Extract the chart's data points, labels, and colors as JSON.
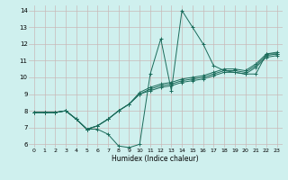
{
  "title": "",
  "xlabel": "Humidex (Indice chaleur)",
  "bg_color": "#cff0ee",
  "grid_color": "#c8b8b8",
  "line_color": "#1a6b5a",
  "xlim": [
    -0.5,
    23.5
  ],
  "ylim": [
    5.8,
    14.3
  ],
  "yticks": [
    6,
    7,
    8,
    9,
    10,
    11,
    12,
    13,
    14
  ],
  "xticks": [
    0,
    1,
    2,
    3,
    4,
    5,
    6,
    7,
    8,
    9,
    10,
    11,
    12,
    13,
    14,
    15,
    16,
    17,
    18,
    19,
    20,
    21,
    22,
    23
  ],
  "series": [
    [
      7.9,
      7.9,
      7.9,
      8.0,
      7.5,
      6.9,
      6.9,
      6.6,
      5.9,
      5.8,
      6.0,
      10.2,
      12.3,
      9.2,
      14.0,
      13.0,
      12.0,
      10.7,
      10.4,
      10.3,
      10.2,
      10.2,
      11.4,
      11.4
    ],
    [
      7.9,
      7.9,
      7.9,
      8.0,
      7.5,
      6.9,
      7.1,
      7.5,
      8.0,
      8.4,
      9.0,
      9.3,
      9.5,
      9.6,
      9.8,
      9.9,
      10.0,
      10.2,
      10.4,
      10.4,
      10.3,
      10.7,
      11.3,
      11.4
    ],
    [
      7.9,
      7.9,
      7.9,
      8.0,
      7.5,
      6.9,
      7.1,
      7.5,
      8.0,
      8.4,
      9.1,
      9.4,
      9.6,
      9.7,
      9.9,
      10.0,
      10.1,
      10.3,
      10.5,
      10.5,
      10.4,
      10.8,
      11.4,
      11.5
    ],
    [
      7.9,
      7.9,
      7.9,
      8.0,
      7.5,
      6.9,
      7.1,
      7.5,
      8.0,
      8.4,
      9.0,
      9.2,
      9.4,
      9.5,
      9.7,
      9.8,
      9.9,
      10.1,
      10.3,
      10.3,
      10.2,
      10.6,
      11.2,
      11.3
    ]
  ]
}
